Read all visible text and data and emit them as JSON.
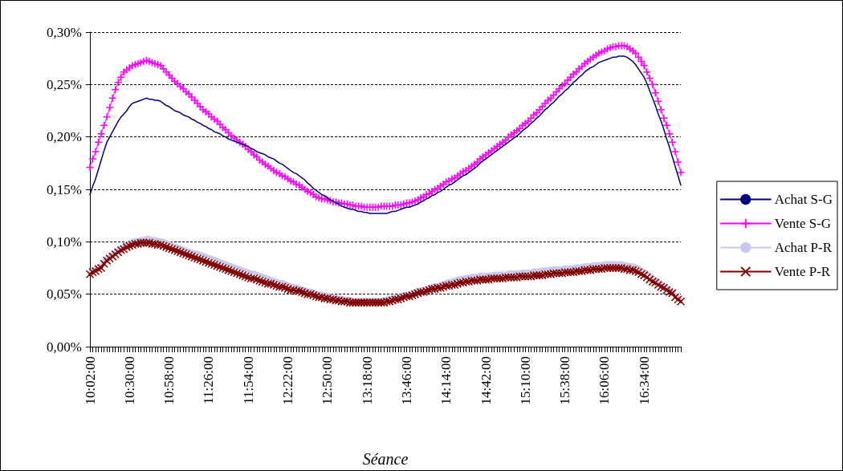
{
  "chart_data": {
    "type": "line",
    "xlabel": "Séance",
    "categories": [
      "10:02:00",
      null,
      null,
      null,
      null,
      null,
      null,
      null,
      null,
      null,
      null,
      null,
      null,
      null,
      "10:30:00",
      null,
      null,
      null,
      null,
      null,
      null,
      null,
      null,
      null,
      null,
      null,
      null,
      null,
      "10:58:00",
      null,
      null,
      null,
      null,
      null,
      null,
      null,
      null,
      null,
      null,
      null,
      null,
      null,
      "11:26:00",
      null,
      null,
      null,
      null,
      null,
      null,
      null,
      null,
      null,
      null,
      null,
      null,
      null,
      "11:54:00",
      null,
      null,
      null,
      null,
      null,
      null,
      null,
      null,
      null,
      null,
      null,
      null,
      null,
      "12:22:00",
      null,
      null,
      null,
      null,
      null,
      null,
      null,
      null,
      null,
      null,
      null,
      null,
      null,
      "12:50:00",
      null,
      null,
      null,
      null,
      null,
      null,
      null,
      null,
      null,
      null,
      null,
      null,
      null,
      "13:18:00",
      null,
      null,
      null,
      null,
      null,
      null,
      null,
      null,
      null,
      null,
      null,
      null,
      null,
      "13:46:00",
      null,
      null,
      null,
      null,
      null,
      null,
      null,
      null,
      null,
      null,
      null,
      null,
      null,
      "14:14:00",
      null,
      null,
      null,
      null,
      null,
      null,
      null,
      null,
      null,
      null,
      null,
      null,
      null,
      "14:42:00",
      null,
      null,
      null,
      null,
      null,
      null,
      null,
      null,
      null,
      null,
      null,
      null,
      null,
      "15:10:00",
      null,
      null,
      null,
      null,
      null,
      null,
      null,
      null,
      null,
      null,
      null,
      null,
      null,
      "15:38:00",
      null,
      null,
      null,
      null,
      null,
      null,
      null,
      null,
      null,
      null,
      null,
      null,
      null,
      "16:06:00",
      null,
      null,
      null,
      null,
      null,
      null,
      null,
      null,
      null,
      null,
      null,
      null,
      null,
      "16:34:00",
      null,
      null,
      null,
      null,
      null,
      null,
      null,
      null,
      null,
      null,
      null,
      null,
      null
    ],
    "series": [
      {
        "name": "Achat S-G",
        "color": "#000080",
        "marker": "none",
        "values": [
          0.145,
          0.153,
          0.16,
          0.169,
          0.178,
          0.187,
          0.195,
          0.2,
          0.205,
          0.21,
          0.215,
          0.219,
          0.222,
          0.225,
          0.229,
          0.232,
          0.233,
          0.234,
          0.235,
          0.236,
          0.237,
          0.236,
          0.236,
          0.235,
          0.235,
          0.234,
          0.232,
          0.23,
          0.229,
          0.227,
          0.225,
          0.224,
          0.223,
          0.221,
          0.22,
          0.219,
          0.217,
          0.216,
          0.214,
          0.213,
          0.211,
          0.21,
          0.208,
          0.207,
          0.205,
          0.204,
          0.203,
          0.201,
          0.2,
          0.198,
          0.197,
          0.196,
          0.195,
          0.194,
          0.193,
          0.192,
          0.191,
          0.189,
          0.188,
          0.186,
          0.185,
          0.184,
          0.183,
          0.181,
          0.18,
          0.179,
          0.177,
          0.175,
          0.174,
          0.172,
          0.17,
          0.168,
          0.166,
          0.165,
          0.163,
          0.161,
          0.159,
          0.156,
          0.154,
          0.151,
          0.149,
          0.147,
          0.145,
          0.144,
          0.142,
          0.14,
          0.139,
          0.137,
          0.136,
          0.134,
          0.133,
          0.132,
          0.131,
          0.131,
          0.13,
          0.129,
          0.129,
          0.128,
          0.128,
          0.127,
          0.127,
          0.127,
          0.127,
          0.127,
          0.127,
          0.127,
          0.128,
          0.129,
          0.129,
          0.13,
          0.131,
          0.132,
          0.133,
          0.133,
          0.134,
          0.135,
          0.136,
          0.138,
          0.139,
          0.141,
          0.142,
          0.144,
          0.145,
          0.147,
          0.148,
          0.15,
          0.152,
          0.154,
          0.155,
          0.157,
          0.159,
          0.161,
          0.163,
          0.164,
          0.166,
          0.168,
          0.17,
          0.172,
          0.175,
          0.177,
          0.179,
          0.181,
          0.183,
          0.185,
          0.187,
          0.189,
          0.191,
          0.193,
          0.195,
          0.197,
          0.199,
          0.201,
          0.203,
          0.206,
          0.208,
          0.21,
          0.213,
          0.215,
          0.218,
          0.22,
          0.223,
          0.226,
          0.228,
          0.231,
          0.233,
          0.236,
          0.239,
          0.241,
          0.244,
          0.246,
          0.249,
          0.252,
          0.254,
          0.257,
          0.259,
          0.262,
          0.264,
          0.266,
          0.267,
          0.269,
          0.271,
          0.272,
          0.273,
          0.274,
          0.275,
          0.276,
          0.276,
          0.277,
          0.277,
          0.277,
          0.276,
          0.274,
          0.272,
          0.269,
          0.265,
          0.261,
          0.257,
          0.251,
          0.244,
          0.237,
          0.23,
          0.222,
          0.215,
          0.207,
          0.198,
          0.19,
          0.181,
          0.172,
          0.163,
          0.154
        ]
      },
      {
        "name": "Vente S-G",
        "color": "#ff00ff",
        "marker": "plus",
        "values": [
          0.171,
          0.179,
          0.186,
          0.195,
          0.203,
          0.211,
          0.219,
          0.228,
          0.237,
          0.245,
          0.252,
          0.257,
          0.262,
          0.264,
          0.266,
          0.268,
          0.269,
          0.27,
          0.271,
          0.272,
          0.273,
          0.272,
          0.271,
          0.27,
          0.269,
          0.268,
          0.265,
          0.262,
          0.259,
          0.256,
          0.253,
          0.251,
          0.248,
          0.246,
          0.243,
          0.241,
          0.238,
          0.235,
          0.232,
          0.229,
          0.226,
          0.224,
          0.222,
          0.219,
          0.217,
          0.215,
          0.212,
          0.209,
          0.207,
          0.204,
          0.201,
          0.199,
          0.197,
          0.195,
          0.193,
          0.191,
          0.188,
          0.186,
          0.183,
          0.181,
          0.178,
          0.176,
          0.174,
          0.172,
          0.17,
          0.168,
          0.166,
          0.165,
          0.163,
          0.162,
          0.16,
          0.158,
          0.157,
          0.155,
          0.154,
          0.152,
          0.15,
          0.148,
          0.147,
          0.145,
          0.143,
          0.142,
          0.141,
          0.141,
          0.14,
          0.139,
          0.138,
          0.138,
          0.137,
          0.137,
          0.136,
          0.136,
          0.135,
          0.135,
          0.134,
          0.134,
          0.134,
          0.133,
          0.133,
          0.133,
          0.133,
          0.133,
          0.133,
          0.134,
          0.134,
          0.134,
          0.134,
          0.134,
          0.135,
          0.135,
          0.135,
          0.136,
          0.137,
          0.137,
          0.138,
          0.139,
          0.14,
          0.142,
          0.143,
          0.145,
          0.146,
          0.148,
          0.15,
          0.151,
          0.153,
          0.155,
          0.157,
          0.158,
          0.16,
          0.161,
          0.163,
          0.165,
          0.167,
          0.168,
          0.17,
          0.172,
          0.174,
          0.176,
          0.179,
          0.181,
          0.183,
          0.185,
          0.187,
          0.189,
          0.191,
          0.193,
          0.195,
          0.197,
          0.2,
          0.202,
          0.204,
          0.206,
          0.208,
          0.211,
          0.213,
          0.215,
          0.218,
          0.221,
          0.223,
          0.226,
          0.229,
          0.232,
          0.235,
          0.237,
          0.24,
          0.243,
          0.246,
          0.249,
          0.251,
          0.254,
          0.257,
          0.26,
          0.262,
          0.265,
          0.267,
          0.27,
          0.272,
          0.274,
          0.276,
          0.278,
          0.28,
          0.281,
          0.282,
          0.284,
          0.285,
          0.286,
          0.286,
          0.287,
          0.287,
          0.287,
          0.286,
          0.284,
          0.282,
          0.28,
          0.276,
          0.272,
          0.268,
          0.262,
          0.256,
          0.25,
          0.242,
          0.234,
          0.226,
          0.218,
          0.211,
          0.203,
          0.195,
          0.186,
          0.176,
          0.166
        ]
      },
      {
        "name": "Achat P-R",
        "color": "#c8c8f0",
        "marker": "none",
        "values": [
          0.072,
          0.074,
          0.075,
          0.077,
          0.078,
          0.082,
          0.085,
          0.087,
          0.089,
          0.091,
          0.093,
          0.095,
          0.096,
          0.098,
          0.1,
          0.101,
          0.102,
          0.102,
          0.103,
          0.103,
          0.104,
          0.104,
          0.103,
          0.103,
          0.102,
          0.102,
          0.101,
          0.1,
          0.099,
          0.098,
          0.097,
          0.096,
          0.095,
          0.094,
          0.093,
          0.092,
          0.091,
          0.09,
          0.09,
          0.089,
          0.088,
          0.087,
          0.086,
          0.085,
          0.084,
          0.083,
          0.082,
          0.081,
          0.08,
          0.079,
          0.078,
          0.077,
          0.076,
          0.075,
          0.074,
          0.073,
          0.072,
          0.071,
          0.071,
          0.07,
          0.069,
          0.068,
          0.067,
          0.066,
          0.065,
          0.064,
          0.063,
          0.062,
          0.062,
          0.061,
          0.06,
          0.059,
          0.058,
          0.058,
          0.057,
          0.056,
          0.055,
          0.054,
          0.054,
          0.053,
          0.052,
          0.051,
          0.051,
          0.05,
          0.05,
          0.049,
          0.048,
          0.048,
          0.047,
          0.047,
          0.046,
          0.046,
          0.046,
          0.045,
          0.045,
          0.045,
          0.045,
          0.045,
          0.045,
          0.045,
          0.045,
          0.045,
          0.045,
          0.045,
          0.045,
          0.046,
          0.047,
          0.047,
          0.048,
          0.048,
          0.049,
          0.05,
          0.051,
          0.051,
          0.052,
          0.053,
          0.054,
          0.055,
          0.055,
          0.056,
          0.057,
          0.058,
          0.059,
          0.059,
          0.06,
          0.061,
          0.062,
          0.063,
          0.063,
          0.064,
          0.065,
          0.066,
          0.066,
          0.067,
          0.067,
          0.068,
          0.068,
          0.068,
          0.069,
          0.069,
          0.069,
          0.069,
          0.069,
          0.07,
          0.07,
          0.07,
          0.07,
          0.07,
          0.071,
          0.071,
          0.071,
          0.071,
          0.071,
          0.072,
          0.072,
          0.072,
          0.072,
          0.073,
          0.073,
          0.073,
          0.074,
          0.074,
          0.074,
          0.075,
          0.075,
          0.075,
          0.075,
          0.075,
          0.076,
          0.076,
          0.076,
          0.076,
          0.077,
          0.077,
          0.077,
          0.078,
          0.078,
          0.078,
          0.079,
          0.079,
          0.079,
          0.079,
          0.08,
          0.08,
          0.08,
          0.08,
          0.08,
          0.08,
          0.08,
          0.079,
          0.079,
          0.078,
          0.078,
          0.077,
          0.076,
          0.074,
          0.073,
          0.071,
          0.069,
          0.067,
          0.065,
          0.063,
          0.061,
          0.059,
          0.057,
          0.055,
          0.053,
          0.05,
          0.048,
          0.045
        ]
      },
      {
        "name": "Vente P-R",
        "color": "#800000",
        "marker": "cross",
        "values": [
          0.069,
          0.071,
          0.072,
          0.074,
          0.075,
          0.079,
          0.082,
          0.084,
          0.086,
          0.088,
          0.09,
          0.092,
          0.093,
          0.095,
          0.096,
          0.097,
          0.098,
          0.098,
          0.099,
          0.099,
          0.099,
          0.099,
          0.098,
          0.098,
          0.097,
          0.097,
          0.096,
          0.095,
          0.094,
          0.093,
          0.092,
          0.091,
          0.09,
          0.089,
          0.088,
          0.087,
          0.086,
          0.085,
          0.084,
          0.083,
          0.082,
          0.081,
          0.08,
          0.079,
          0.078,
          0.077,
          0.076,
          0.075,
          0.074,
          0.073,
          0.072,
          0.071,
          0.07,
          0.069,
          0.068,
          0.067,
          0.066,
          0.065,
          0.065,
          0.064,
          0.063,
          0.062,
          0.061,
          0.06,
          0.06,
          0.059,
          0.058,
          0.057,
          0.057,
          0.056,
          0.055,
          0.054,
          0.054,
          0.053,
          0.053,
          0.052,
          0.051,
          0.05,
          0.05,
          0.049,
          0.048,
          0.047,
          0.047,
          0.046,
          0.046,
          0.045,
          0.045,
          0.044,
          0.044,
          0.043,
          0.043,
          0.043,
          0.042,
          0.042,
          0.042,
          0.042,
          0.042,
          0.042,
          0.042,
          0.042,
          0.042,
          0.042,
          0.042,
          0.042,
          0.042,
          0.043,
          0.043,
          0.044,
          0.045,
          0.045,
          0.046,
          0.047,
          0.048,
          0.048,
          0.049,
          0.05,
          0.051,
          0.052,
          0.052,
          0.053,
          0.054,
          0.055,
          0.055,
          0.056,
          0.056,
          0.057,
          0.058,
          0.058,
          0.059,
          0.059,
          0.06,
          0.061,
          0.061,
          0.062,
          0.062,
          0.063,
          0.063,
          0.063,
          0.064,
          0.064,
          0.064,
          0.064,
          0.065,
          0.065,
          0.065,
          0.065,
          0.065,
          0.066,
          0.066,
          0.066,
          0.066,
          0.066,
          0.067,
          0.067,
          0.067,
          0.067,
          0.067,
          0.068,
          0.068,
          0.068,
          0.068,
          0.069,
          0.069,
          0.069,
          0.07,
          0.07,
          0.07,
          0.07,
          0.071,
          0.071,
          0.071,
          0.071,
          0.072,
          0.072,
          0.072,
          0.073,
          0.073,
          0.073,
          0.074,
          0.074,
          0.074,
          0.074,
          0.075,
          0.075,
          0.075,
          0.075,
          0.075,
          0.075,
          0.075,
          0.074,
          0.074,
          0.073,
          0.073,
          0.072,
          0.071,
          0.069,
          0.068,
          0.066,
          0.064,
          0.062,
          0.061,
          0.059,
          0.057,
          0.056,
          0.054,
          0.052,
          0.051,
          0.047,
          0.045,
          0.043
        ]
      }
    ],
    "ylim": [
      0,
      0.3
    ],
    "yticks": [
      {
        "value": 0,
        "label": "0,00%"
      },
      {
        "value": 0.05,
        "label": "0,05%"
      },
      {
        "value": 0.1,
        "label": "0,10%"
      },
      {
        "value": 0.15,
        "label": "0,15%"
      },
      {
        "value": 0.2,
        "label": "0,20%"
      },
      {
        "value": 0.25,
        "label": "0,25%"
      },
      {
        "value": 0.3,
        "label": "0,30%"
      }
    ],
    "grid": "y",
    "legend": "right"
  }
}
